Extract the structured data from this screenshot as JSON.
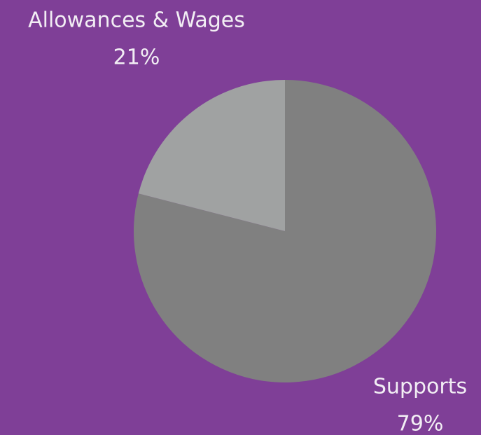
{
  "chart_data": {
    "type": "pie",
    "categories": [
      "Supports",
      "Allowances & Wages"
    ],
    "values": [
      79,
      21
    ],
    "value_labels": [
      "79%",
      "21%"
    ],
    "colors": [
      "#808080",
      "#a0a2a2"
    ],
    "background": "#7f3f97"
  }
}
